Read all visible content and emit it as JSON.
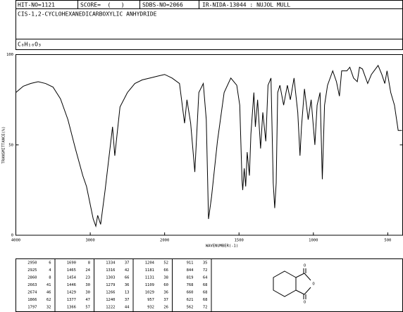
{
  "header": {
    "hit_no": "HIT-NO=1121",
    "score": "SCORE=  (   )",
    "sdbs_no": "SDBS-NO=2066",
    "method": "IR-NIDA-13044 : NUJOL MULL",
    "compound": "CIS-1,2-CYCLOHEXANEDICARBOXYLIC ANHYDRIDE",
    "formula": "C₈H₁₀O₃"
  },
  "chart_data": {
    "type": "line",
    "x_label": "WAVENUMBER(-1)",
    "y_label": "TRANSMITTANCE(%)",
    "x": [
      4000,
      3900,
      3800,
      3700,
      3600,
      3500,
      3400,
      3300,
      3200,
      3100,
      3050,
      3000,
      2960,
      2925,
      2900,
      2860,
      2800,
      2700,
      2670,
      2600,
      2500,
      2400,
      2300,
      2200,
      2100,
      2000,
      1950,
      1900,
      1866,
      1850,
      1825,
      1797,
      1770,
      1740,
      1720,
      1705,
      1685,
      1645,
      1600,
      1555,
      1515,
      1495,
      1480,
      1475,
      1465,
      1455,
      1445,
      1430,
      1420,
      1400,
      1390,
      1375,
      1355,
      1340,
      1320,
      1305,
      1285,
      1270,
      1260,
      1250,
      1240,
      1225,
      1200,
      1175,
      1155,
      1130,
      1105,
      1090,
      1080,
      1060,
      1035,
      1015,
      990,
      975,
      955,
      940,
      925,
      905,
      870,
      845,
      825,
      810,
      775,
      755,
      730,
      705,
      690,
      670,
      635,
      610,
      565,
      540,
      520,
      505,
      480,
      455,
      430,
      405
    ],
    "series": [
      {
        "color": "#000000",
        "values": [
          79,
          82.5,
          84,
          85,
          84,
          82,
          75.5,
          64,
          48,
          33,
          27,
          17,
          9,
          5,
          11,
          6,
          25,
          60,
          44,
          71,
          79,
          84,
          86,
          87,
          88,
          89,
          87,
          84,
          62,
          75,
          62,
          35,
          79,
          84,
          64,
          9,
          21,
          52,
          79,
          87,
          83,
          72,
          31,
          25,
          37,
          27,
          46,
          33,
          56,
          79,
          60,
          75,
          48,
          68,
          52,
          83,
          87,
          29,
          15,
          29,
          79,
          83,
          72,
          83,
          75,
          87,
          68,
          44,
          60,
          81,
          64,
          75,
          50,
          72,
          79,
          31,
          72,
          83,
          91,
          85,
          77,
          91,
          91,
          93,
          87,
          85,
          93,
          92,
          84,
          89,
          94,
          89,
          84,
          91,
          79,
          72,
          58,
          58
        ]
      }
    ],
    "xlim": [
      4000,
      400
    ],
    "xticks": [
      4000,
      3000,
      2000,
      1500,
      1000,
      500
    ],
    "ylim": [
      0,
      100
    ],
    "yticks": [
      0,
      50,
      100
    ]
  },
  "peak_table": [
    [
      [
        2950,
        6
      ],
      [
        2925,
        4
      ],
      [
        2860,
        8
      ],
      [
        2663,
        41
      ],
      [
        2674,
        46
      ],
      [
        1866,
        62
      ],
      [
        1797,
        32
      ]
    ],
    [
      [
        1690,
        8
      ],
      [
        1465,
        24
      ],
      [
        1454,
        23
      ],
      [
        1446,
        30
      ],
      [
        1429,
        30
      ],
      [
        1377,
        47
      ],
      [
        1366,
        57
      ]
    ],
    [
      [
        1334,
        37
      ],
      [
        1316,
        42
      ],
      [
        1303,
        66
      ],
      [
        1279,
        36
      ],
      [
        1266,
        13
      ],
      [
        1240,
        37
      ],
      [
        1222,
        44
      ]
    ],
    [
      [
        1204,
        52
      ],
      [
        1181,
        66
      ],
      [
        1131,
        38
      ],
      [
        1109,
        60
      ],
      [
        1029,
        36
      ],
      [
        957,
        37
      ],
      [
        932,
        26
      ]
    ],
    [
      [
        911,
        35
      ],
      [
        844,
        72
      ],
      [
        819,
        64
      ],
      [
        768,
        68
      ],
      [
        660,
        68
      ],
      [
        621,
        68
      ],
      [
        562,
        72
      ]
    ]
  ],
  "structure_atoms": [
    "O",
    "O",
    "O"
  ]
}
